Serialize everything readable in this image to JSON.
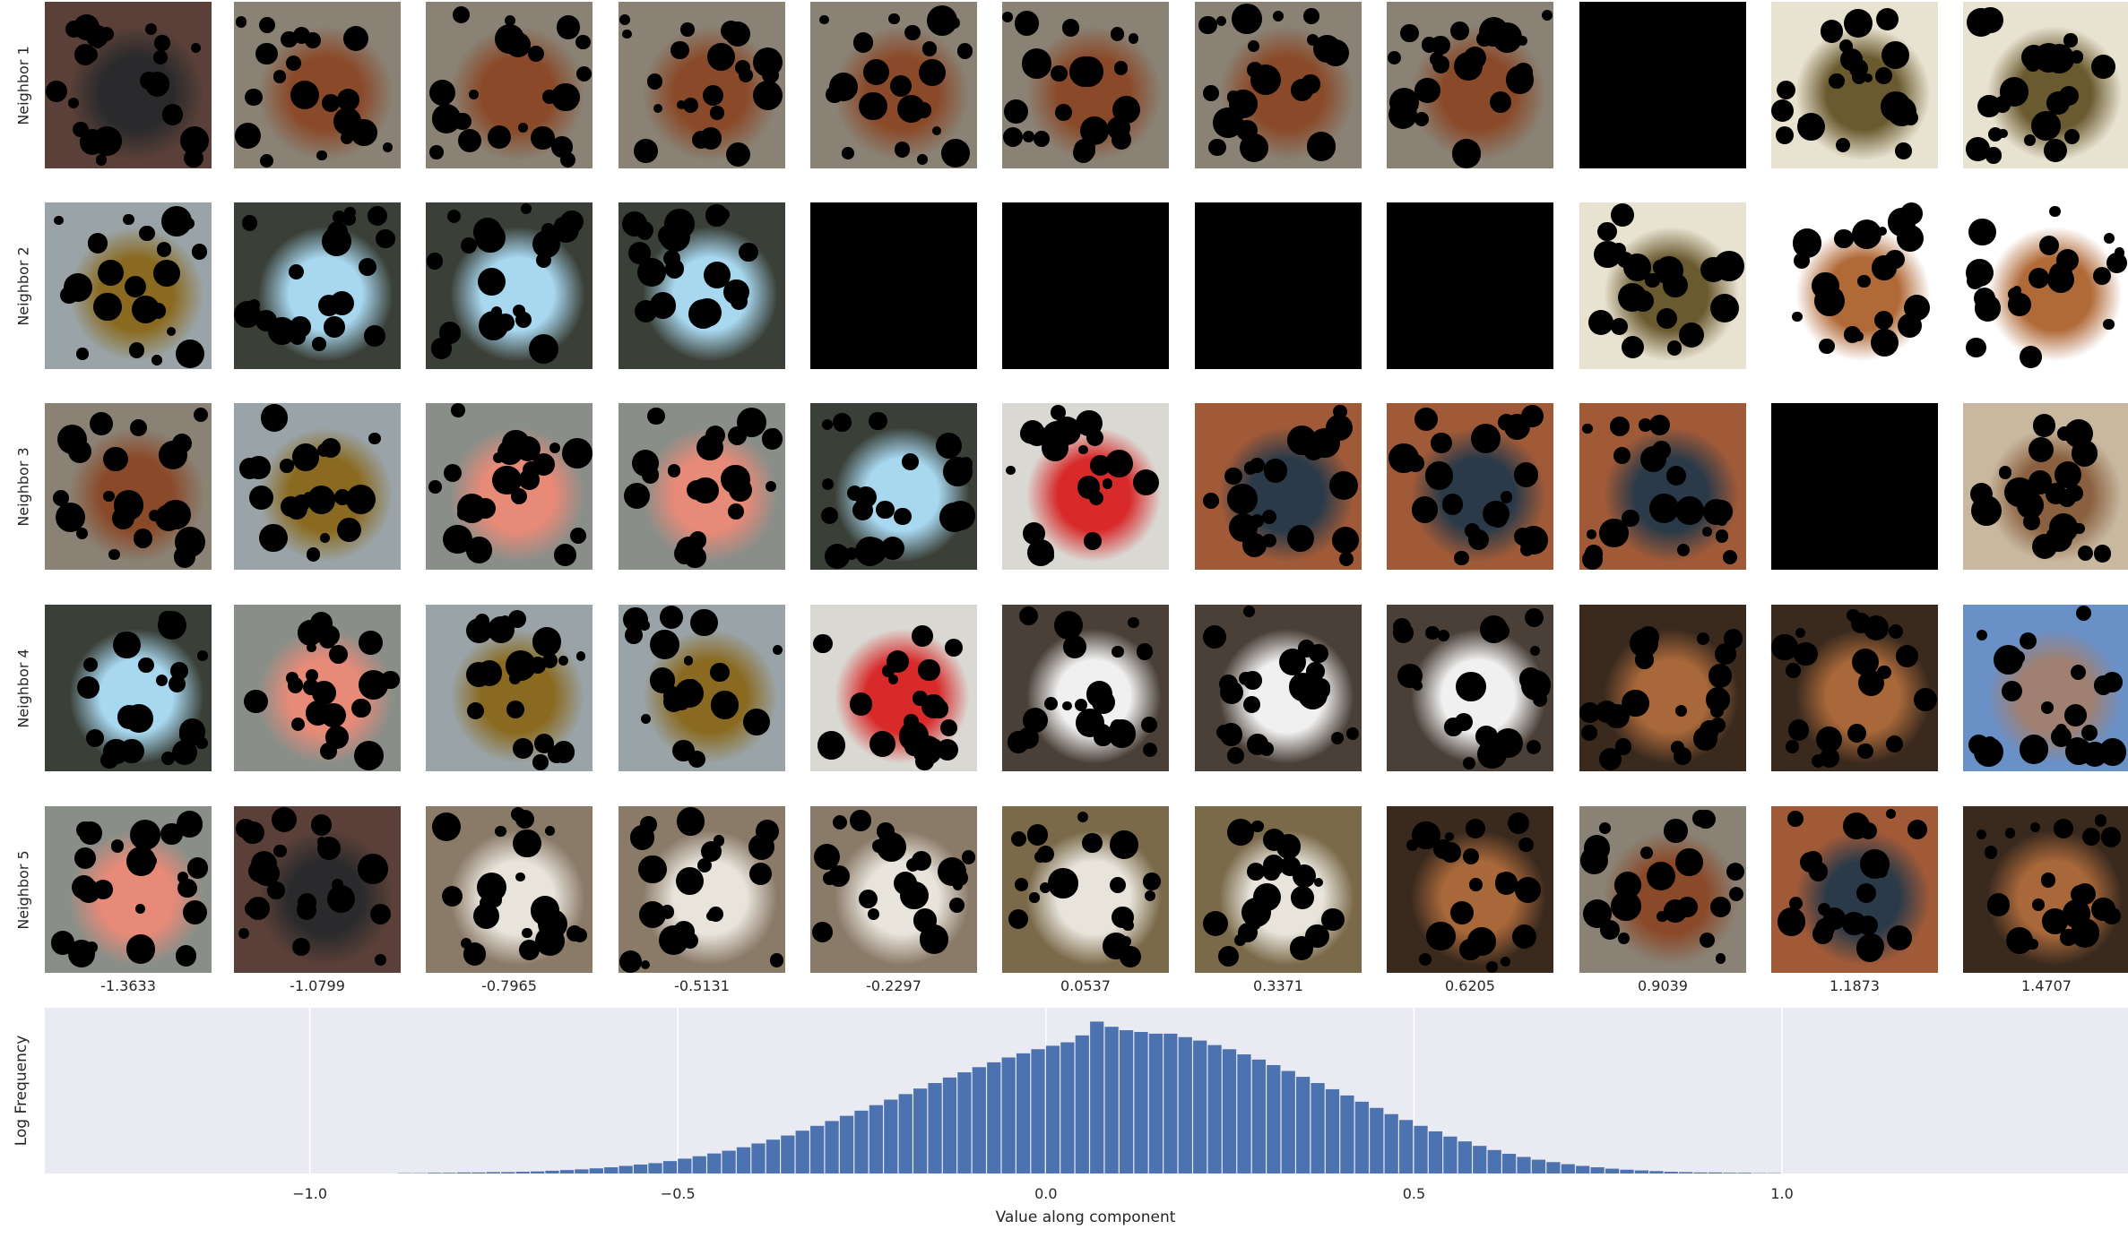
{
  "row_labels": [
    "Neighbor 1",
    "Neighbor 2",
    "Neighbor 3",
    "Neighbor 4",
    "Neighbor 5"
  ],
  "column_values": [
    "-1.3633",
    "-1.0799",
    "-0.7965",
    "-0.5131",
    "-0.2297",
    "0.0537",
    "0.3371",
    "0.6205",
    "0.9039",
    "1.1873",
    "1.4707"
  ],
  "tiles": [
    [
      "cat-dark",
      "dog-brown-white",
      "dog-brown-white",
      "dog-brown-white",
      "dog-brown-white",
      "dog-brown-white",
      "dog-brown-white",
      "dog-brown-white",
      "black",
      "tree-goat",
      "tree-goat"
    ],
    [
      "beetle",
      "bird-house",
      "bird-house",
      "bird-house",
      "black",
      "black",
      "black",
      "black",
      "tree-goat",
      "dog-tan",
      "dog-tan"
    ],
    [
      "dog-brown-white",
      "beetle",
      "bird-white-pink",
      "bird-white-pink",
      "bird-house",
      "people",
      "cow",
      "cow",
      "cow",
      "black",
      "snake"
    ],
    [
      "bird-house",
      "bird-white-pink",
      "beetle",
      "beetle",
      "people",
      "dogs-fluffy",
      "dogs-fluffy",
      "dogs-fluffy",
      "dog-brown",
      "dog-brown",
      "town"
    ],
    [
      "bird-white-pink",
      "cat-dark",
      "bird-rock",
      "bird-rock",
      "bird-rock",
      "dog-white-black",
      "dog-white-black",
      "dog-brown",
      "dog-brown-white",
      "cow",
      "dog-brown"
    ]
  ],
  "tile_colors": {
    "cat-dark": {
      "bg": "#5a4038",
      "fg": "#2a2a2c"
    },
    "dog-brown-white": {
      "bg": "#8a8275",
      "fg": "#8a4a2a"
    },
    "black": {
      "bg": "#000000",
      "fg": "#000000"
    },
    "tree-goat": {
      "bg": "#e8e2d0",
      "fg": "#6a5a30"
    },
    "beetle": {
      "bg": "#9aa4a8",
      "fg": "#8a6a20"
    },
    "bird-house": {
      "bg": "#3a4038",
      "fg": "#a8d8f0"
    },
    "dog-tan": {
      "bg": "#ffffff",
      "fg": "#b06a38"
    },
    "bird-white-pink": {
      "bg": "#8a8e88",
      "fg": "#e88a78"
    },
    "people": {
      "bg": "#dad8d2",
      "fg": "#d82a2a"
    },
    "cow": {
      "bg": "#a05a38",
      "fg": "#2a3a48"
    },
    "snake": {
      "bg": "#c8b8a0",
      "fg": "#8a6040"
    },
    "dogs-fluffy": {
      "bg": "#4a4038",
      "fg": "#f0f0f0"
    },
    "dog-brown": {
      "bg": "#3a2a1e",
      "fg": "#a8683a"
    },
    "town": {
      "bg": "#6a90c8",
      "fg": "#a08070"
    },
    "bird-rock": {
      "bg": "#8a7a68",
      "fg": "#e8e4dc"
    },
    "dog-white-black": {
      "bg": "#7a6a4a",
      "fg": "#e8e4dc"
    }
  },
  "chart_data": {
    "type": "bar",
    "xlabel": "Value along component",
    "ylabel": "Log Frequency",
    "xlim": [
      -1.36,
      1.47
    ],
    "ylim": [
      0,
      4.8
    ],
    "grid": true,
    "xticks": [
      -1.0,
      -0.5,
      0.0,
      0.5,
      1.0
    ],
    "xtick_labels": [
      "−1.0",
      "−0.5",
      "0.0",
      "0.5",
      "1.0"
    ],
    "bin_width": 0.02,
    "x": [
      -0.88,
      -0.86,
      -0.84,
      -0.82,
      -0.8,
      -0.78,
      -0.76,
      -0.74,
      -0.72,
      -0.7,
      -0.68,
      -0.66,
      -0.64,
      -0.62,
      -0.6,
      -0.58,
      -0.56,
      -0.54,
      -0.52,
      -0.5,
      -0.48,
      -0.46,
      -0.44,
      -0.42,
      -0.4,
      -0.38,
      -0.36,
      -0.34,
      -0.32,
      -0.3,
      -0.28,
      -0.26,
      -0.24,
      -0.22,
      -0.2,
      -0.18,
      -0.16,
      -0.14,
      -0.12,
      -0.1,
      -0.08,
      -0.06,
      -0.04,
      -0.02,
      0.0,
      0.02,
      0.04,
      0.06,
      0.08,
      0.1,
      0.12,
      0.14,
      0.16,
      0.18,
      0.2,
      0.22,
      0.24,
      0.26,
      0.28,
      0.3,
      0.32,
      0.34,
      0.36,
      0.38,
      0.4,
      0.42,
      0.44,
      0.46,
      0.48,
      0.5,
      0.52,
      0.54,
      0.56,
      0.58,
      0.6,
      0.62,
      0.64,
      0.66,
      0.68,
      0.7,
      0.72,
      0.74,
      0.76,
      0.78,
      0.8,
      0.82,
      0.84,
      0.86,
      0.88,
      0.9,
      0.92,
      0.94,
      0.96,
      0.98
    ],
    "values": [
      0.01,
      0.01,
      0.02,
      0.02,
      0.03,
      0.03,
      0.04,
      0.04,
      0.05,
      0.06,
      0.08,
      0.1,
      0.12,
      0.15,
      0.18,
      0.22,
      0.26,
      0.3,
      0.36,
      0.43,
      0.5,
      0.58,
      0.66,
      0.76,
      0.87,
      0.98,
      1.1,
      1.24,
      1.38,
      1.52,
      1.67,
      1.82,
      1.98,
      2.14,
      2.3,
      2.46,
      2.62,
      2.78,
      2.93,
      3.08,
      3.22,
      3.36,
      3.48,
      3.6,
      3.7,
      3.8,
      4.0,
      4.4,
      4.25,
      4.15,
      4.1,
      4.05,
      4.05,
      3.95,
      3.85,
      3.72,
      3.6,
      3.45,
      3.3,
      3.14,
      2.97,
      2.8,
      2.62,
      2.44,
      2.26,
      2.08,
      1.9,
      1.72,
      1.55,
      1.38,
      1.22,
      1.07,
      0.93,
      0.8,
      0.68,
      0.57,
      0.48,
      0.4,
      0.33,
      0.27,
      0.22,
      0.18,
      0.14,
      0.11,
      0.09,
      0.07,
      0.05,
      0.04,
      0.03,
      0.03,
      0.02,
      0.02,
      0.01,
      0.01
    ],
    "bar_color": "#4c72b0",
    "background": "#eaeaf2"
  }
}
